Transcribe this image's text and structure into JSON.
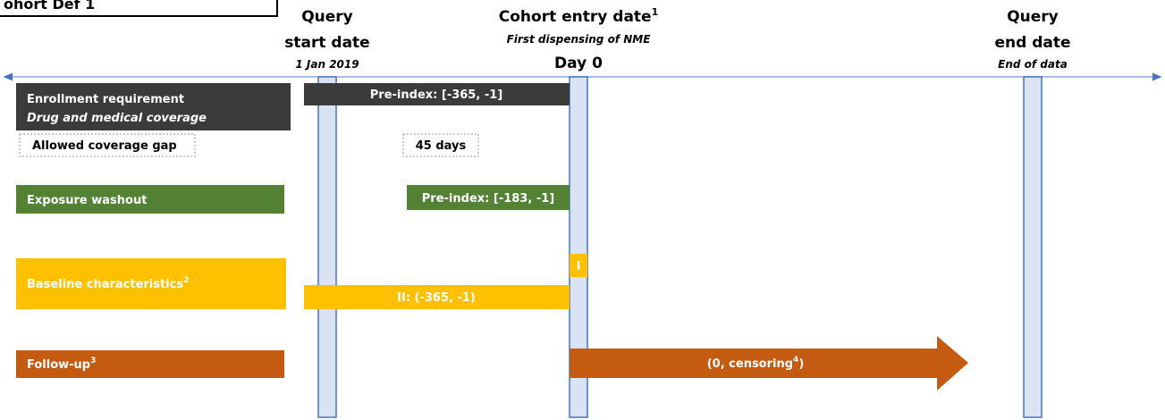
{
  "header": {
    "title": "ohort Def 1"
  },
  "markers": [
    {
      "line1": "Query",
      "line2": "start date",
      "note": "1 Jan 2019"
    },
    {
      "line1": "Cohort entry date",
      "sup": "1",
      "note": "First dispensing of NME",
      "line2": "Day 0"
    },
    {
      "line1": "Query",
      "line2": "end date",
      "note": "End of data"
    }
  ],
  "rows": [
    {
      "label": "Enrollment requirement",
      "sublabel": "Drug and medical coverage",
      "window": "Pre-index: [-365, -1]"
    },
    {
      "label": "Allowed coverage gap",
      "window": "45 days"
    },
    {
      "label": "Exposure washout",
      "window": "Pre-index: [-183, -1]"
    },
    {
      "label": "Baseline characteristics",
      "sup": "2",
      "window_a": "I",
      "window": "II: (-365, -1)"
    },
    {
      "label": "Follow-up",
      "sup": "3",
      "window": "(0, censoring",
      "window_sup": "4",
      "window_end": ")"
    }
  ]
}
